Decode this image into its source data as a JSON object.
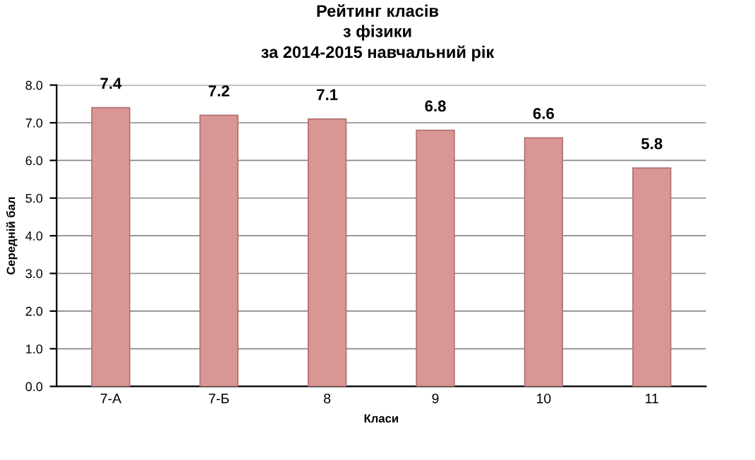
{
  "chart_data": {
    "type": "bar",
    "title": "Рейтинг класів\nз фізики\nза 2014-2015 навчальний рік",
    "xlabel": "Класи",
    "ylabel": "Середній бал",
    "categories": [
      "7-А",
      "7-Б",
      "8",
      "9",
      "10",
      "11"
    ],
    "values": [
      7.4,
      7.2,
      7.1,
      6.8,
      6.6,
      5.8
    ],
    "color": "#d99694",
    "data_labels": true,
    "grid": "y",
    "ylim": [
      0,
      8
    ],
    "yticks": [
      {
        "value": 0,
        "label": "0.0"
      },
      {
        "value": 1,
        "label": "1.0"
      },
      {
        "value": 2,
        "label": "2.0"
      },
      {
        "value": 3,
        "label": "3.0"
      },
      {
        "value": 4,
        "label": "4.0"
      },
      {
        "value": 5,
        "label": "5.0"
      },
      {
        "value": 6,
        "label": "6.0"
      },
      {
        "value": 7,
        "label": "7.0"
      },
      {
        "value": 8,
        "label": "8.0"
      }
    ]
  }
}
